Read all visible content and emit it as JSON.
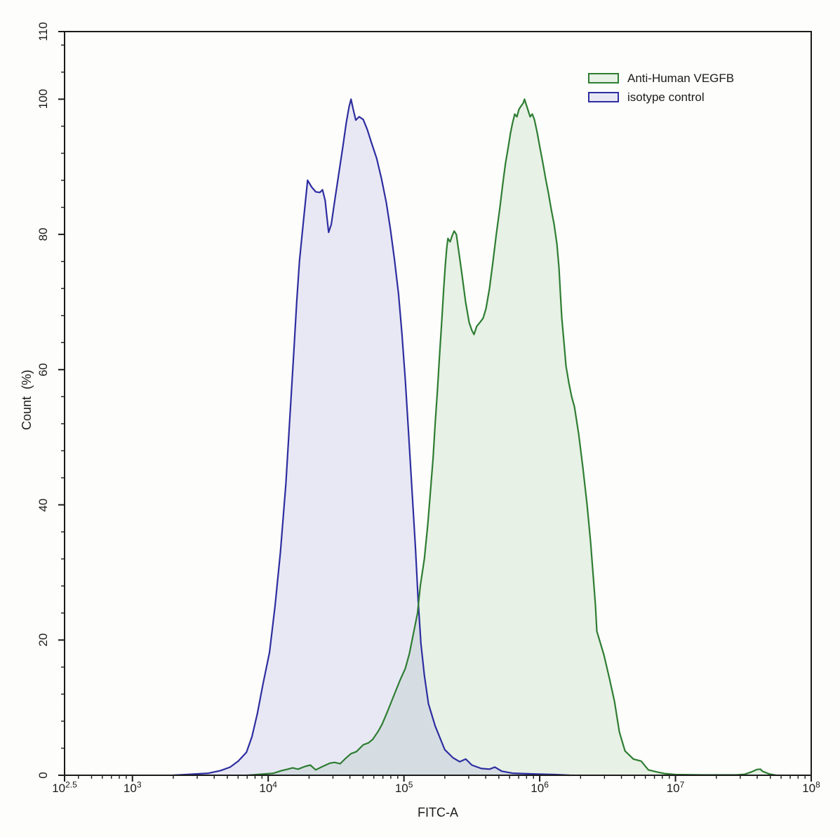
{
  "chart_data": {
    "type": "area",
    "title": "",
    "xlabel": "FITC-A",
    "ylabel": "Count  (%)",
    "x_scale": "log10",
    "x_range_log": [
      2.5,
      8
    ],
    "ylim": [
      0,
      110
    ],
    "grid": false,
    "legend_position": "top-right",
    "frame_color": "#1b1b1b",
    "x_major_ticks": [
      {
        "base": "10",
        "exp": "2.5",
        "log": 2.5
      },
      {
        "base": "10",
        "exp": "3",
        "log": 3
      },
      {
        "base": "10",
        "exp": "4",
        "log": 4
      },
      {
        "base": "10",
        "exp": "5",
        "log": 5
      },
      {
        "base": "10",
        "exp": "6",
        "log": 6
      },
      {
        "base": "10",
        "exp": "7",
        "log": 7
      },
      {
        "base": "10",
        "exp": "8",
        "log": 8
      }
    ],
    "y_major_ticks": [
      0,
      20,
      40,
      60,
      80,
      100,
      110
    ],
    "y_minor_step": 4,
    "series": [
      {
        "name": "Anti-Human VEGFB",
        "line_color": "#2e7d32",
        "fill_color": "rgba(76,160,76,0.12)",
        "points": [
          [
            3.85,
            0
          ],
          [
            4.04,
            0.3
          ],
          [
            4.1,
            0.7
          ],
          [
            4.145,
            0.9
          ],
          [
            4.18,
            1.1
          ],
          [
            4.22,
            0.9
          ],
          [
            4.27,
            1.3
          ],
          [
            4.31,
            1.5
          ],
          [
            4.35,
            0.8
          ],
          [
            4.4,
            1.3
          ],
          [
            4.455,
            1.8
          ],
          [
            4.49,
            1.9
          ],
          [
            4.53,
            1.7
          ],
          [
            4.57,
            2.5
          ],
          [
            4.61,
            3.2
          ],
          [
            4.65,
            3.5
          ],
          [
            4.7,
            4.5
          ],
          [
            4.74,
            4.8
          ],
          [
            4.77,
            5.3
          ],
          [
            4.81,
            6.5
          ],
          [
            4.84,
            7.6
          ],
          [
            4.88,
            9.5
          ],
          [
            4.91,
            11
          ],
          [
            4.94,
            12.5
          ],
          [
            4.97,
            14
          ],
          [
            5.01,
            15.8
          ],
          [
            5.04,
            18
          ],
          [
            5.07,
            21
          ],
          [
            5.1,
            24
          ],
          [
            5.12,
            28
          ],
          [
            5.15,
            32
          ],
          [
            5.175,
            37
          ],
          [
            5.195,
            42
          ],
          [
            5.215,
            47
          ],
          [
            5.23,
            52
          ],
          [
            5.247,
            57
          ],
          [
            5.262,
            62
          ],
          [
            5.278,
            67
          ],
          [
            5.293,
            72
          ],
          [
            5.305,
            75.5
          ],
          [
            5.315,
            78
          ],
          [
            5.324,
            79.4
          ],
          [
            5.34,
            78.9
          ],
          [
            5.355,
            79.8
          ],
          [
            5.37,
            80.5
          ],
          [
            5.386,
            80
          ],
          [
            5.407,
            77
          ],
          [
            5.428,
            74
          ],
          [
            5.454,
            70
          ],
          [
            5.48,
            67
          ],
          [
            5.5,
            65.8
          ],
          [
            5.516,
            65.2
          ],
          [
            5.536,
            66.4
          ],
          [
            5.56,
            67
          ],
          [
            5.583,
            67.6
          ],
          [
            5.604,
            69
          ],
          [
            5.63,
            72
          ],
          [
            5.656,
            76
          ],
          [
            5.68,
            80
          ],
          [
            5.707,
            84
          ],
          [
            5.728,
            87.5
          ],
          [
            5.748,
            90.5
          ],
          [
            5.769,
            93
          ],
          [
            5.785,
            95
          ],
          [
            5.8,
            96.5
          ],
          [
            5.816,
            97.8
          ],
          [
            5.832,
            97.4
          ],
          [
            5.847,
            98.5
          ],
          [
            5.863,
            99
          ],
          [
            5.878,
            99.4
          ],
          [
            5.888,
            100
          ],
          [
            5.904,
            99
          ],
          [
            5.92,
            98
          ],
          [
            5.93,
            97.4
          ],
          [
            5.945,
            97.8
          ],
          [
            5.961,
            97
          ],
          [
            5.982,
            95
          ],
          [
            6.0,
            93
          ],
          [
            6.023,
            90.6
          ],
          [
            6.044,
            88.2
          ],
          [
            6.065,
            86
          ],
          [
            6.086,
            83.6
          ],
          [
            6.106,
            81.5
          ],
          [
            6.127,
            78.5
          ],
          [
            6.142,
            75
          ],
          [
            6.153,
            71
          ],
          [
            6.163,
            67.6
          ],
          [
            6.179,
            64
          ],
          [
            6.194,
            60.5
          ],
          [
            6.215,
            58
          ],
          [
            6.235,
            56
          ],
          [
            6.256,
            54.5
          ],
          [
            6.287,
            50.5
          ],
          [
            6.318,
            45.5
          ],
          [
            6.349,
            40
          ],
          [
            6.375,
            34.5
          ],
          [
            6.396,
            29
          ],
          [
            6.411,
            25
          ],
          [
            6.421,
            21.3
          ],
          [
            6.473,
            17.8
          ],
          [
            6.514,
            14.3
          ],
          [
            6.551,
            10.9
          ],
          [
            6.587,
            6.4
          ],
          [
            6.628,
            3.6
          ],
          [
            6.69,
            2.4
          ],
          [
            6.747,
            2.1
          ],
          [
            6.8,
            0.8
          ],
          [
            6.86,
            0.5
          ],
          [
            6.92,
            0.25
          ],
          [
            7.0,
            0.1
          ],
          [
            7.2,
            0.05
          ],
          [
            7.45,
            0.05
          ],
          [
            7.51,
            0.15
          ],
          [
            7.56,
            0.5
          ],
          [
            7.6,
            0.85
          ],
          [
            7.626,
            0.9
          ],
          [
            7.64,
            0.6
          ],
          [
            7.69,
            0.2
          ],
          [
            7.74,
            0
          ]
        ]
      },
      {
        "name": "isotype control",
        "line_color": "#2d2da0",
        "fill_color": "rgba(90,90,210,0.13)",
        "points": [
          [
            3.3,
            0
          ],
          [
            3.56,
            0.3
          ],
          [
            3.65,
            0.7
          ],
          [
            3.72,
            1.2
          ],
          [
            3.78,
            2.1
          ],
          [
            3.84,
            3.4
          ],
          [
            3.88,
            5.7
          ],
          [
            3.92,
            9.1
          ],
          [
            3.96,
            13.3
          ],
          [
            4.01,
            18.2
          ],
          [
            4.05,
            25
          ],
          [
            4.09,
            33
          ],
          [
            4.13,
            43
          ],
          [
            4.16,
            53
          ],
          [
            4.19,
            63
          ],
          [
            4.21,
            70
          ],
          [
            4.23,
            76
          ],
          [
            4.25,
            80
          ],
          [
            4.27,
            84
          ],
          [
            4.29,
            88
          ],
          [
            4.32,
            87
          ],
          [
            4.35,
            86.3
          ],
          [
            4.38,
            86.2
          ],
          [
            4.4,
            86.6
          ],
          [
            4.42,
            85
          ],
          [
            4.43,
            83
          ],
          [
            4.445,
            80.3
          ],
          [
            4.465,
            81.5
          ],
          [
            4.49,
            85
          ],
          [
            4.52,
            89
          ],
          [
            4.55,
            93
          ],
          [
            4.575,
            96.5
          ],
          [
            4.595,
            98.8
          ],
          [
            4.61,
            100
          ],
          [
            4.625,
            98.6
          ],
          [
            4.645,
            96.9
          ],
          [
            4.67,
            97.4
          ],
          [
            4.7,
            97
          ],
          [
            4.73,
            95.5
          ],
          [
            4.76,
            93.6
          ],
          [
            4.8,
            91.2
          ],
          [
            4.835,
            88.2
          ],
          [
            4.87,
            84.7
          ],
          [
            4.9,
            80.8
          ],
          [
            4.93,
            76.3
          ],
          [
            4.96,
            71.2
          ],
          [
            4.985,
            65.4
          ],
          [
            5.01,
            58.4
          ],
          [
            5.035,
            50.3
          ],
          [
            5.06,
            42
          ],
          [
            5.085,
            33.5
          ],
          [
            5.105,
            25.8
          ],
          [
            5.125,
            19.5
          ],
          [
            5.15,
            14.8
          ],
          [
            5.18,
            10.6
          ],
          [
            5.23,
            7.3
          ],
          [
            5.3,
            3.8
          ],
          [
            5.36,
            2.6
          ],
          [
            5.41,
            2.0
          ],
          [
            5.455,
            2.4
          ],
          [
            5.5,
            1.5
          ],
          [
            5.57,
            1.0
          ],
          [
            5.63,
            0.9
          ],
          [
            5.67,
            1.2
          ],
          [
            5.72,
            0.6
          ],
          [
            5.8,
            0.3
          ],
          [
            5.95,
            0.2
          ],
          [
            6.11,
            0.1
          ],
          [
            6.22,
            0
          ]
        ]
      }
    ]
  }
}
